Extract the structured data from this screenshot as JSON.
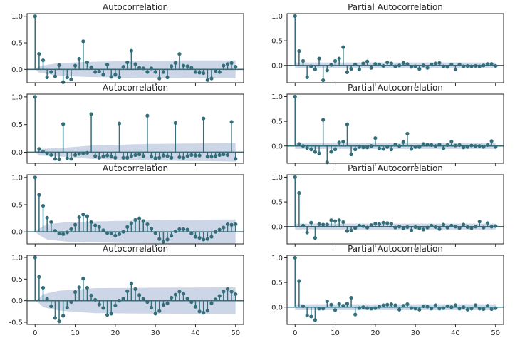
{
  "colors": {
    "stem": "#336e7a",
    "band": "#c6d1e4",
    "axis": "#262626",
    "background": "#ffffff"
  },
  "chart_data": [
    {
      "type": "stem",
      "title": "Autocorrelation",
      "ylim": [
        -0.25,
        1.05
      ],
      "xlim": [
        -2,
        52
      ],
      "yticks": [
        0.0,
        0.5,
        1.0
      ],
      "ytick_labels": [
        "0.0",
        "0.5",
        "1.0"
      ],
      "xticks": [
        0,
        10,
        20,
        30,
        40,
        50
      ],
      "xtick_labels": [
        "",
        "",
        "",
        "",
        "",
        ""
      ],
      "values": [
        1.0,
        0.29,
        0.17,
        -0.15,
        -0.05,
        -0.13,
        0.08,
        -0.24,
        -0.15,
        -0.19,
        0.07,
        0.2,
        0.53,
        0.13,
        0.04,
        -0.05,
        -0.04,
        -0.1,
        0.09,
        -0.14,
        -0.1,
        -0.15,
        0.05,
        0.13,
        0.35,
        0.1,
        0.03,
        0.02,
        -0.05,
        0.02,
        -0.05,
        -0.17,
        -0.05,
        -0.15,
        0.06,
        0.12,
        0.29,
        0.07,
        0.06,
        0.03,
        -0.05,
        -0.06,
        -0.07,
        -0.2,
        -0.17,
        -0.03,
        -0.05,
        0.07,
        0.1,
        0.12,
        0.05
      ],
      "band": [
        [
          0,
          0.0
        ],
        [
          1,
          0.06
        ],
        [
          5,
          0.11
        ],
        [
          12,
          0.14
        ],
        [
          25,
          0.16
        ],
        [
          40,
          0.17
        ],
        [
          50,
          0.17
        ]
      ]
    },
    {
      "type": "stem",
      "title": "Partial Autocorrelation",
      "ylim": [
        -0.35,
        1.05
      ],
      "xlim": [
        -2,
        52
      ],
      "yticks": [
        0.0,
        0.5,
        1.0
      ],
      "ytick_labels": [
        "0.0",
        "0.5",
        "1.0"
      ],
      "xticks": [
        0,
        10,
        20,
        30,
        40,
        50
      ],
      "xtick_labels": [
        "",
        "",
        "",
        "",
        "",
        ""
      ],
      "values": [
        1.0,
        0.29,
        0.09,
        -0.24,
        -0.02,
        -0.08,
        0.14,
        -0.3,
        -0.1,
        0.01,
        0.09,
        0.14,
        0.37,
        -0.14,
        -0.07,
        0.02,
        -0.08,
        0.04,
        0.08,
        -0.05,
        0.03,
        0.02,
        -0.01,
        0.06,
        0.04,
        -0.02,
        0.0,
        0.05,
        0.03,
        -0.03,
        -0.02,
        -0.07,
        0.0,
        -0.05,
        0.02,
        0.04,
        0.05,
        -0.02,
        -0.03,
        0.02,
        -0.08,
        0.02,
        -0.02,
        -0.01,
        -0.02,
        -0.01,
        -0.02,
        0.0,
        0.03,
        0.03,
        -0.01
      ],
      "band": [
        [
          0,
          0.06
        ],
        [
          50,
          0.06
        ]
      ]
    },
    {
      "type": "stem",
      "title": "Autocorrelation",
      "ylim": [
        -0.2,
        1.05
      ],
      "xlim": [
        -2,
        52
      ],
      "yticks": [
        0.0,
        0.5,
        1.0
      ],
      "ytick_labels": [
        "0.0",
        "0.5",
        "1.0"
      ],
      "xticks": [
        0,
        10,
        20,
        30,
        40,
        50
      ],
      "xtick_labels": [
        "",
        "",
        "",
        "",
        "",
        ""
      ],
      "values": [
        1.0,
        0.06,
        0.01,
        -0.02,
        -0.05,
        -0.12,
        -0.13,
        0.51,
        -0.11,
        -0.12,
        -0.05,
        -0.03,
        -0.02,
        -0.01,
        0.69,
        -0.07,
        -0.1,
        -0.08,
        -0.06,
        -0.08,
        -0.1,
        0.52,
        -0.1,
        -0.1,
        -0.07,
        -0.05,
        -0.04,
        -0.07,
        0.66,
        -0.08,
        -0.11,
        -0.1,
        -0.06,
        -0.07,
        -0.1,
        0.53,
        -0.09,
        -0.1,
        -0.07,
        -0.05,
        -0.06,
        -0.06,
        0.61,
        -0.08,
        -0.08,
        -0.07,
        -0.05,
        -0.04,
        -0.05,
        0.55,
        -0.12
      ],
      "band": [
        [
          0,
          0.0
        ],
        [
          1,
          0.06
        ],
        [
          7,
          0.08
        ],
        [
          14,
          0.12
        ],
        [
          28,
          0.15
        ],
        [
          42,
          0.16
        ],
        [
          50,
          0.17
        ]
      ]
    },
    {
      "type": "stem",
      "title": "Partial Autocorrelation",
      "ylim": [
        -0.35,
        1.05
      ],
      "xlim": [
        -2,
        52
      ],
      "yticks": [
        0.0,
        0.5,
        1.0
      ],
      "ytick_labels": [
        "0.0",
        "0.5",
        "1.0"
      ],
      "xticks": [
        0,
        10,
        20,
        30,
        40,
        50
      ],
      "xtick_labels": [
        "",
        "",
        "",
        "",
        "",
        ""
      ],
      "values": [
        1.0,
        0.04,
        0.0,
        -0.04,
        -0.07,
        -0.12,
        -0.15,
        0.53,
        -0.33,
        -0.12,
        -0.07,
        0.07,
        0.09,
        0.44,
        -0.17,
        -0.07,
        -0.02,
        -0.03,
        -0.03,
        0.0,
        0.16,
        -0.05,
        -0.06,
        -0.02,
        -0.07,
        0.03,
        0.0,
        0.08,
        0.25,
        -0.06,
        -0.02,
        -0.02,
        0.04,
        0.03,
        0.02,
        0.0,
        0.03,
        -0.05,
        0.02,
        0.09,
        0.01,
        0.02,
        -0.03,
        -0.02,
        0.01,
        0.0,
        0.0,
        -0.02,
        0.02,
        0.1,
        -0.02
      ],
      "band": [
        [
          0,
          0.06
        ],
        [
          50,
          0.06
        ]
      ]
    },
    {
      "type": "stem",
      "title": "Autocorrelation",
      "ylim": [
        -0.22,
        1.05
      ],
      "xlim": [
        -2,
        52
      ],
      "yticks": [
        0.0,
        0.5,
        1.0
      ],
      "ytick_labels": [
        "0.0",
        "0.5",
        "1.0"
      ],
      "xticks": [
        0,
        10,
        20,
        30,
        40,
        50
      ],
      "xtick_labels": [
        "",
        "",
        "",
        "",
        "",
        ""
      ],
      "values": [
        1.0,
        0.68,
        0.48,
        0.26,
        0.18,
        0.02,
        -0.03,
        -0.04,
        -0.01,
        0.05,
        0.13,
        0.27,
        0.32,
        0.29,
        0.18,
        0.12,
        0.09,
        0.03,
        -0.02,
        -0.03,
        -0.07,
        -0.04,
        0.0,
        0.09,
        0.16,
        0.22,
        0.25,
        0.2,
        0.14,
        0.06,
        -0.02,
        -0.13,
        -0.18,
        -0.14,
        -0.07,
        0.01,
        0.05,
        0.05,
        0.04,
        -0.03,
        -0.09,
        -0.11,
        -0.14,
        -0.13,
        -0.09,
        0.0,
        0.04,
        0.08,
        0.14,
        0.13,
        0.14
      ],
      "band": [
        [
          0,
          0.0
        ],
        [
          1,
          0.06
        ],
        [
          3,
          0.14
        ],
        [
          8,
          0.18
        ],
        [
          20,
          0.2
        ],
        [
          35,
          0.22
        ],
        [
          50,
          0.23
        ]
      ]
    },
    {
      "type": "stem",
      "title": "Partial Autocorrelation",
      "ylim": [
        -0.35,
        1.05
      ],
      "xlim": [
        -2,
        52
      ],
      "yticks": [
        0.0,
        0.5,
        1.0
      ],
      "ytick_labels": [
        "0.0",
        "0.5",
        "1.0"
      ],
      "xticks": [
        0,
        10,
        20,
        30,
        40,
        50
      ],
      "xtick_labels": [
        "",
        "",
        "",
        "",
        "",
        ""
      ],
      "values": [
        1.0,
        0.68,
        0.02,
        -0.12,
        0.08,
        -0.23,
        0.05,
        0.04,
        0.04,
        0.13,
        0.11,
        0.13,
        0.09,
        -0.09,
        -0.08,
        -0.03,
        0.02,
        0.01,
        -0.02,
        0.03,
        0.06,
        0.05,
        0.08,
        0.07,
        0.06,
        -0.02,
        0.0,
        -0.04,
        -0.01,
        -0.08,
        -0.01,
        -0.03,
        -0.06,
        -0.02,
        0.02,
        -0.01,
        -0.05,
        0.04,
        -0.02,
        0.02,
        0.0,
        -0.03,
        0.04,
        -0.01,
        -0.03,
        0.0,
        0.1,
        -0.02,
        0.07,
        0.0,
        0.01
      ],
      "band": [
        [
          0,
          0.06
        ],
        [
          50,
          0.06
        ]
      ]
    },
    {
      "type": "stem",
      "title": "Autocorrelation",
      "ylim": [
        -0.55,
        1.05
      ],
      "xlim": [
        -2,
        52
      ],
      "yticks": [
        -0.5,
        0.0,
        0.5,
        1.0
      ],
      "ytick_labels": [
        "-0.5",
        "0.0",
        "0.5",
        "1.0"
      ],
      "xticks": [
        0,
        10,
        20,
        30,
        40,
        50
      ],
      "xtick_labels": [
        "0",
        "10",
        "20",
        "30",
        "40",
        "50"
      ],
      "values": [
        1.0,
        0.55,
        0.3,
        0.04,
        -0.13,
        -0.4,
        -0.48,
        -0.35,
        -0.16,
        -0.03,
        0.2,
        0.31,
        0.51,
        0.3,
        0.12,
        0.02,
        -0.09,
        -0.17,
        -0.33,
        -0.3,
        -0.11,
        0.0,
        0.05,
        0.22,
        0.4,
        0.27,
        0.13,
        0.04,
        -0.03,
        -0.16,
        -0.3,
        -0.24,
        -0.1,
        -0.06,
        0.07,
        0.14,
        0.21,
        0.16,
        0.05,
        -0.03,
        -0.14,
        -0.25,
        -0.28,
        -0.23,
        -0.06,
        0.03,
        0.11,
        0.21,
        0.27,
        0.21,
        0.15
      ],
      "band": [
        [
          0,
          0.0
        ],
        [
          1,
          0.06
        ],
        [
          2,
          0.15
        ],
        [
          6,
          0.23
        ],
        [
          15,
          0.29
        ],
        [
          30,
          0.3
        ],
        [
          50,
          0.31
        ]
      ]
    },
    {
      "type": "stem",
      "title": "Partial Autocorrelation",
      "ylim": [
        -0.35,
        1.05
      ],
      "xlim": [
        -2,
        52
      ],
      "yticks": [
        0.0,
        0.5,
        1.0
      ],
      "ytick_labels": [
        "0.0",
        "0.5",
        "1.0"
      ],
      "xticks": [
        0,
        10,
        20,
        30,
        40,
        50
      ],
      "xtick_labels": [
        "0",
        "10",
        "20",
        "30",
        "40",
        "50"
      ],
      "values": [
        1.0,
        0.53,
        0.02,
        -0.17,
        -0.19,
        -0.26,
        -0.03,
        -0.03,
        0.12,
        0.05,
        -0.06,
        0.07,
        0.03,
        0.07,
        0.19,
        -0.15,
        -0.02,
        0.0,
        -0.02,
        -0.03,
        -0.02,
        0.01,
        0.04,
        0.05,
        0.06,
        0.04,
        -0.05,
        0.03,
        0.06,
        -0.02,
        -0.03,
        -0.05,
        0.02,
        0.01,
        -0.03,
        0.04,
        -0.03,
        -0.02,
        0.02,
        0.0,
        0.04,
        -0.03,
        0.0,
        -0.05,
        -0.03,
        0.04,
        -0.03,
        -0.04,
        0.03,
        -0.04,
        -0.02
      ],
      "band": [
        [
          0,
          0.06
        ],
        [
          50,
          0.06
        ]
      ]
    }
  ]
}
